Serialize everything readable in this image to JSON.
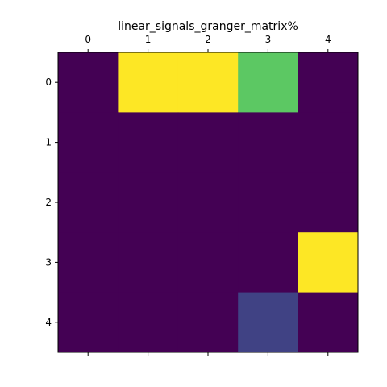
{
  "chart_data": {
    "type": "heatmap",
    "title": "linear_signals_granger_matrix%",
    "x_ticks": [
      "0",
      "1",
      "2",
      "3",
      "4"
    ],
    "y_ticks": [
      "0",
      "1",
      "2",
      "3",
      "4"
    ],
    "x_axis_position": "top",
    "colormap": "viridis",
    "vmin": 0,
    "vmax": 1,
    "values": [
      [
        0.0,
        1.0,
        1.0,
        0.75,
        0.0
      ],
      [
        0.0,
        0.0,
        0.0,
        0.0,
        0.0
      ],
      [
        0.0,
        0.0,
        0.0,
        0.0,
        0.0
      ],
      [
        0.0,
        0.0,
        0.0,
        0.0,
        1.0
      ],
      [
        0.0,
        0.0,
        0.0,
        0.2,
        0.0
      ]
    ],
    "grid": false
  }
}
